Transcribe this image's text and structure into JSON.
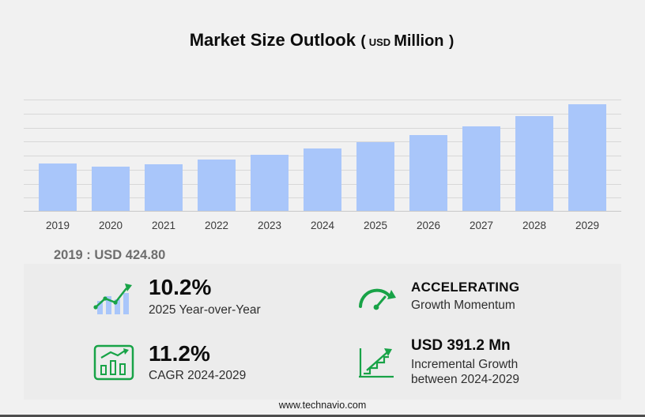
{
  "page": {
    "title": "Market Size Outlook",
    "title_open": "(",
    "title_currency": "USD",
    "title_unit": "Million",
    "title_close": ")",
    "footer_link": "www.technavio.com"
  },
  "base_year_note": "2019 : USD 424.80",
  "chart_data": {
    "type": "bar",
    "title": "Market Size Outlook (USD Million)",
    "unit": "USD Million",
    "categories": [
      "2019",
      "2020",
      "2021",
      "2022",
      "2023",
      "2024",
      "2025",
      "2026",
      "2027",
      "2028",
      "2029"
    ],
    "values": [
      424.8,
      395,
      415,
      455,
      500,
      558.9,
      616,
      678,
      755,
      845,
      950.1
    ],
    "ylim": [
      0,
      1000
    ],
    "grid": true,
    "legend": false,
    "bar_color": "#a9c6fa",
    "annotations": [
      "2019 : USD 424.80"
    ]
  },
  "stats": [
    {
      "icon": "yoy-bar-growth-icon",
      "value": "10.2%",
      "label": "2025 Year-over-Year"
    },
    {
      "icon": "gauge-icon",
      "value": "ACCELERATING",
      "label": "Growth Momentum"
    },
    {
      "icon": "cagr-chart-icon",
      "value": "11.2%",
      "label": "CAGR 2024-2029"
    },
    {
      "icon": "incremental-growth-icon",
      "value": "USD 391.2 Mn",
      "label": "Incremental Growth between 2024-2029"
    }
  ],
  "colors": {
    "accent_green": "#18a347",
    "bar_blue": "#a9c6fa",
    "background": "#f1f1f1"
  }
}
